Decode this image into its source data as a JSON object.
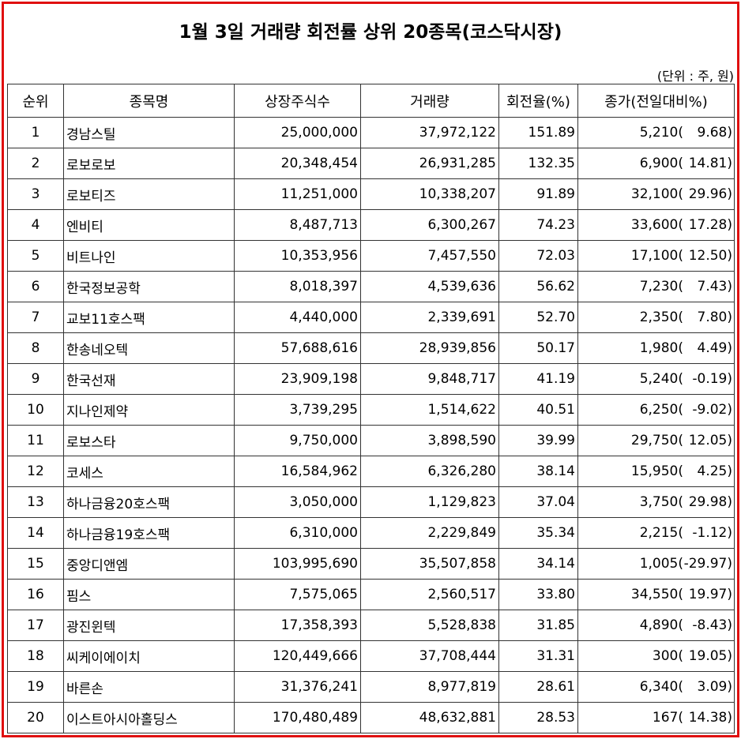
{
  "title": "1월 3일 거래량 회전률 상위 20종목(코스닥시장)",
  "unit": "(단위 : 주, 원)",
  "table": {
    "columns": [
      "순위",
      "종목명",
      "상장주식수",
      "거래량",
      "회전율(%)",
      "종가(전일대비%)"
    ],
    "rows": [
      [
        "1",
        "경남스틸",
        "25,000,000",
        "37,972,122",
        "151.89",
        "5,210(",
        "9.68)"
      ],
      [
        "2",
        "로보로보",
        "20,348,454",
        "26,931,285",
        "132.35",
        "6,900(",
        "14.81)"
      ],
      [
        "3",
        "로보티즈",
        "11,251,000",
        "10,338,207",
        "91.89",
        "32,100(",
        "29.96)"
      ],
      [
        "4",
        "엔비티",
        "8,487,713",
        "6,300,267",
        "74.23",
        "33,600(",
        "17.28)"
      ],
      [
        "5",
        "비트나인",
        "10,353,956",
        "7,457,550",
        "72.03",
        "17,100(",
        "12.50)"
      ],
      [
        "6",
        "한국정보공학",
        "8,018,397",
        "4,539,636",
        "56.62",
        "7,230(",
        "7.43)"
      ],
      [
        "7",
        "교보11호스팩",
        "4,440,000",
        "2,339,691",
        "52.70",
        "2,350(",
        "7.80)"
      ],
      [
        "8",
        "한송네오텍",
        "57,688,616",
        "28,939,856",
        "50.17",
        "1,980(",
        "4.49)"
      ],
      [
        "9",
        "한국선재",
        "23,909,198",
        "9,848,717",
        "41.19",
        "5,240(",
        "-0.19)"
      ],
      [
        "10",
        "지나인제약",
        "3,739,295",
        "1,514,622",
        "40.51",
        "6,250(",
        "-9.02)"
      ],
      [
        "11",
        "로보스타",
        "9,750,000",
        "3,898,590",
        "39.99",
        "29,750(",
        "12.05)"
      ],
      [
        "12",
        "코세스",
        "16,584,962",
        "6,326,280",
        "38.14",
        "15,950(",
        "4.25)"
      ],
      [
        "13",
        "하나금융20호스팩",
        "3,050,000",
        "1,129,823",
        "37.04",
        "3,750(",
        "29.98)"
      ],
      [
        "14",
        "하나금융19호스팩",
        "6,310,000",
        "2,229,849",
        "35.34",
        "2,215(",
        "-1.12)"
      ],
      [
        "15",
        "중앙디앤엠",
        "103,995,690",
        "35,507,858",
        "34.14",
        "1,005(",
        "-29.97)"
      ],
      [
        "16",
        "핌스",
        "7,575,065",
        "2,560,517",
        "33.80",
        "34,550(",
        "19.97)"
      ],
      [
        "17",
        "광진윈텍",
        "17,358,393",
        "5,528,838",
        "31.85",
        "4,890(",
        "-8.43)"
      ],
      [
        "18",
        "씨케이에이치",
        "120,449,666",
        "37,708,444",
        "31.31",
        "300(",
        "19.05)"
      ],
      [
        "19",
        "바른손",
        "31,376,241",
        "8,977,819",
        "28.61",
        "6,340(",
        "3.09)"
      ],
      [
        "20",
        "이스트아시아홀딩스",
        "170,480,489",
        "48,632,881",
        "28.53",
        "167(",
        "14.38)"
      ]
    ]
  }
}
